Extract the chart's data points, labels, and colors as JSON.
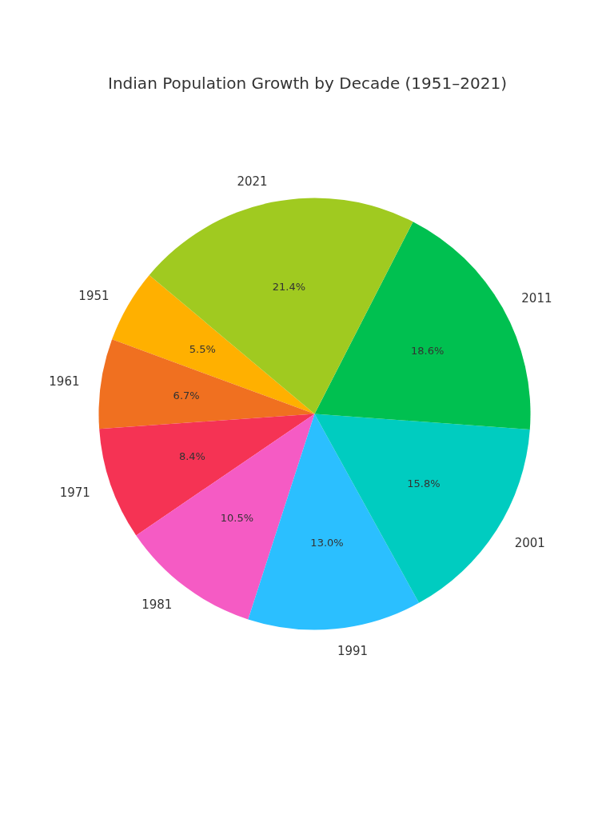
{
  "chart_data": {
    "type": "pie",
    "title": "Indian Population Growth by Decade (1951–2021)",
    "categories": [
      "1951",
      "1961",
      "1971",
      "1981",
      "1991",
      "2001",
      "2011",
      "2021"
    ],
    "values": [
      5.5,
      6.7,
      8.4,
      10.5,
      13.0,
      15.8,
      18.6,
      21.4
    ],
    "colors": [
      "#ffb000",
      "#f07020",
      "#f53354",
      "#f55bc4",
      "#2bbfff",
      "#00ccc0",
      "#00c050",
      "#a0ca20"
    ],
    "value_labels": [
      "5.5%",
      "6.7%",
      "8.4%",
      "10.5%",
      "13.0%",
      "15.8%",
      "18.6%",
      "21.4%"
    ]
  }
}
